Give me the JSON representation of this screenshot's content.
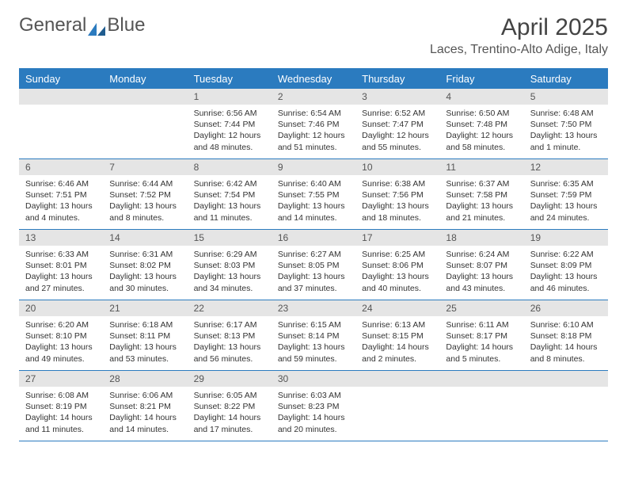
{
  "brand": {
    "part1": "General",
    "part2": "Blue"
  },
  "title": "April 2025",
  "location": "Laces, Trentino-Alto Adige, Italy",
  "colors": {
    "header_bg": "#2b7bbf",
    "daynum_bg": "#e5e5e5",
    "text": "#333333",
    "brand_gray": "#555555",
    "brand_blue": "#2b7bbf"
  },
  "typography": {
    "title_size": 30,
    "location_size": 16,
    "weekday_size": 13,
    "daynum_size": 12,
    "body_size": 10.5
  },
  "weekdays": [
    "Sunday",
    "Monday",
    "Tuesday",
    "Wednesday",
    "Thursday",
    "Friday",
    "Saturday"
  ],
  "weeks": [
    [
      null,
      null,
      {
        "n": "1",
        "sunrise": "6:56 AM",
        "sunset": "7:44 PM",
        "daylight": "12 hours and 48 minutes."
      },
      {
        "n": "2",
        "sunrise": "6:54 AM",
        "sunset": "7:46 PM",
        "daylight": "12 hours and 51 minutes."
      },
      {
        "n": "3",
        "sunrise": "6:52 AM",
        "sunset": "7:47 PM",
        "daylight": "12 hours and 55 minutes."
      },
      {
        "n": "4",
        "sunrise": "6:50 AM",
        "sunset": "7:48 PM",
        "daylight": "12 hours and 58 minutes."
      },
      {
        "n": "5",
        "sunrise": "6:48 AM",
        "sunset": "7:50 PM",
        "daylight": "13 hours and 1 minute."
      }
    ],
    [
      {
        "n": "6",
        "sunrise": "6:46 AM",
        "sunset": "7:51 PM",
        "daylight": "13 hours and 4 minutes."
      },
      {
        "n": "7",
        "sunrise": "6:44 AM",
        "sunset": "7:52 PM",
        "daylight": "13 hours and 8 minutes."
      },
      {
        "n": "8",
        "sunrise": "6:42 AM",
        "sunset": "7:54 PM",
        "daylight": "13 hours and 11 minutes."
      },
      {
        "n": "9",
        "sunrise": "6:40 AM",
        "sunset": "7:55 PM",
        "daylight": "13 hours and 14 minutes."
      },
      {
        "n": "10",
        "sunrise": "6:38 AM",
        "sunset": "7:56 PM",
        "daylight": "13 hours and 18 minutes."
      },
      {
        "n": "11",
        "sunrise": "6:37 AM",
        "sunset": "7:58 PM",
        "daylight": "13 hours and 21 minutes."
      },
      {
        "n": "12",
        "sunrise": "6:35 AM",
        "sunset": "7:59 PM",
        "daylight": "13 hours and 24 minutes."
      }
    ],
    [
      {
        "n": "13",
        "sunrise": "6:33 AM",
        "sunset": "8:01 PM",
        "daylight": "13 hours and 27 minutes."
      },
      {
        "n": "14",
        "sunrise": "6:31 AM",
        "sunset": "8:02 PM",
        "daylight": "13 hours and 30 minutes."
      },
      {
        "n": "15",
        "sunrise": "6:29 AM",
        "sunset": "8:03 PM",
        "daylight": "13 hours and 34 minutes."
      },
      {
        "n": "16",
        "sunrise": "6:27 AM",
        "sunset": "8:05 PM",
        "daylight": "13 hours and 37 minutes."
      },
      {
        "n": "17",
        "sunrise": "6:25 AM",
        "sunset": "8:06 PM",
        "daylight": "13 hours and 40 minutes."
      },
      {
        "n": "18",
        "sunrise": "6:24 AM",
        "sunset": "8:07 PM",
        "daylight": "13 hours and 43 minutes."
      },
      {
        "n": "19",
        "sunrise": "6:22 AM",
        "sunset": "8:09 PM",
        "daylight": "13 hours and 46 minutes."
      }
    ],
    [
      {
        "n": "20",
        "sunrise": "6:20 AM",
        "sunset": "8:10 PM",
        "daylight": "13 hours and 49 minutes."
      },
      {
        "n": "21",
        "sunrise": "6:18 AM",
        "sunset": "8:11 PM",
        "daylight": "13 hours and 53 minutes."
      },
      {
        "n": "22",
        "sunrise": "6:17 AM",
        "sunset": "8:13 PM",
        "daylight": "13 hours and 56 minutes."
      },
      {
        "n": "23",
        "sunrise": "6:15 AM",
        "sunset": "8:14 PM",
        "daylight": "13 hours and 59 minutes."
      },
      {
        "n": "24",
        "sunrise": "6:13 AM",
        "sunset": "8:15 PM",
        "daylight": "14 hours and 2 minutes."
      },
      {
        "n": "25",
        "sunrise": "6:11 AM",
        "sunset": "8:17 PM",
        "daylight": "14 hours and 5 minutes."
      },
      {
        "n": "26",
        "sunrise": "6:10 AM",
        "sunset": "8:18 PM",
        "daylight": "14 hours and 8 minutes."
      }
    ],
    [
      {
        "n": "27",
        "sunrise": "6:08 AM",
        "sunset": "8:19 PM",
        "daylight": "14 hours and 11 minutes."
      },
      {
        "n": "28",
        "sunrise": "6:06 AM",
        "sunset": "8:21 PM",
        "daylight": "14 hours and 14 minutes."
      },
      {
        "n": "29",
        "sunrise": "6:05 AM",
        "sunset": "8:22 PM",
        "daylight": "14 hours and 17 minutes."
      },
      {
        "n": "30",
        "sunrise": "6:03 AM",
        "sunset": "8:23 PM",
        "daylight": "14 hours and 20 minutes."
      },
      null,
      null,
      null
    ]
  ],
  "labels": {
    "sunrise": "Sunrise: ",
    "sunset": "Sunset: ",
    "daylight": "Daylight: "
  }
}
